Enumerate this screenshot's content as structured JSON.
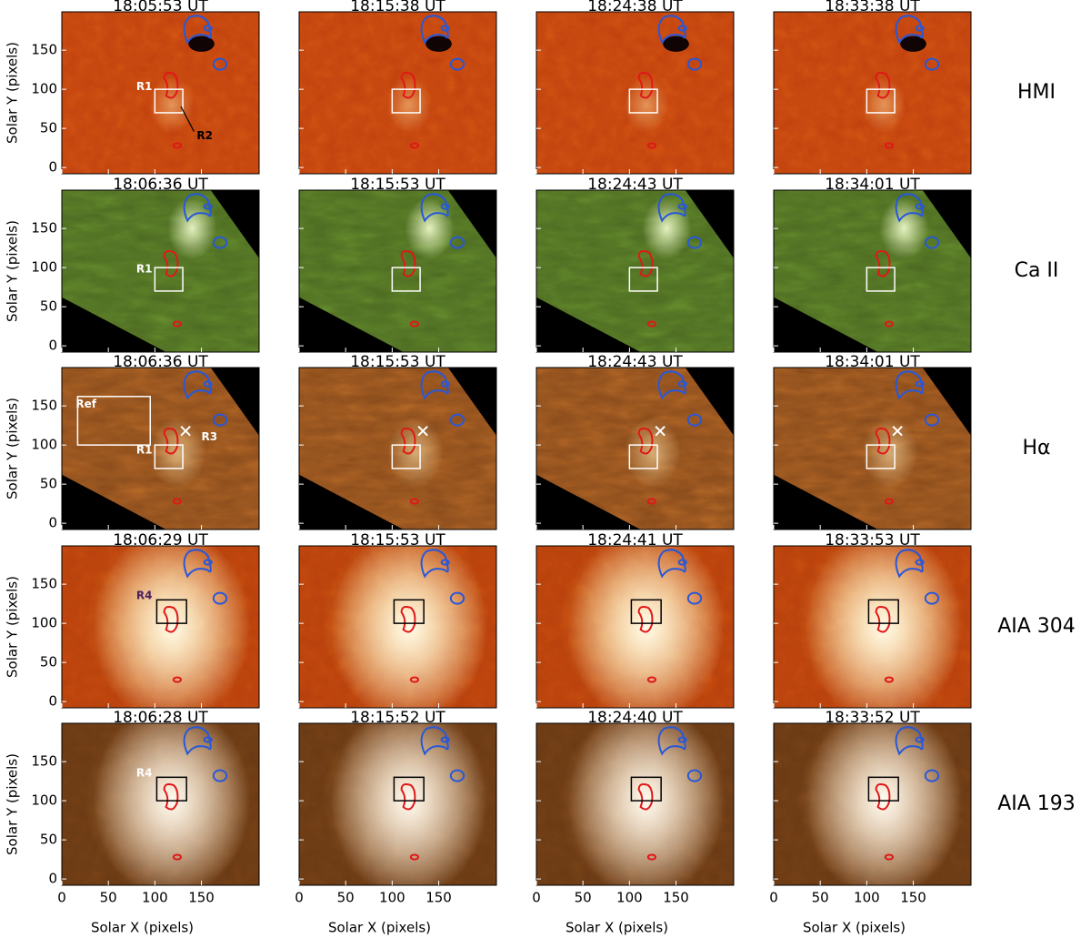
{
  "axes": {
    "xlabel": "Solar X (pixels)",
    "ylabel": "Solar Y (pixels)",
    "xlim": [
      0,
      212
    ],
    "ylim": [
      -8,
      199
    ],
    "xticks": [
      0,
      50,
      100,
      150
    ],
    "yticks": [
      0,
      50,
      100,
      150
    ]
  },
  "rows": [
    {
      "label": "HMI",
      "times": [
        "18:05:53 UT",
        "18:15:38 UT",
        "18:24:38 UT",
        "18:33:38 UT"
      ],
      "annotations": [
        "R1",
        "R2"
      ]
    },
    {
      "label": "Ca II",
      "times": [
        "18:06:36 UT",
        "18:15:53 UT",
        "18:24:43 UT",
        "18:34:01 UT"
      ],
      "annotations": [
        "R1"
      ]
    },
    {
      "label": "Hα",
      "times": [
        "18:06:36 UT",
        "18:15:53 UT",
        "18:24:43 UT",
        "18:34:01 UT"
      ],
      "annotations": [
        "Ref",
        "R1",
        "R3"
      ]
    },
    {
      "label": "AIA 304",
      "times": [
        "18:06:29 UT",
        "18:15:53 UT",
        "18:24:41 UT",
        "18:33:53 UT"
      ],
      "annotations": [
        "R4"
      ]
    },
    {
      "label": "AIA 193",
      "times": [
        "18:06:28 UT",
        "18:15:52 UT",
        "18:24:40 UT",
        "18:33:52 UT"
      ],
      "annotations": [
        "R4"
      ]
    }
  ]
}
